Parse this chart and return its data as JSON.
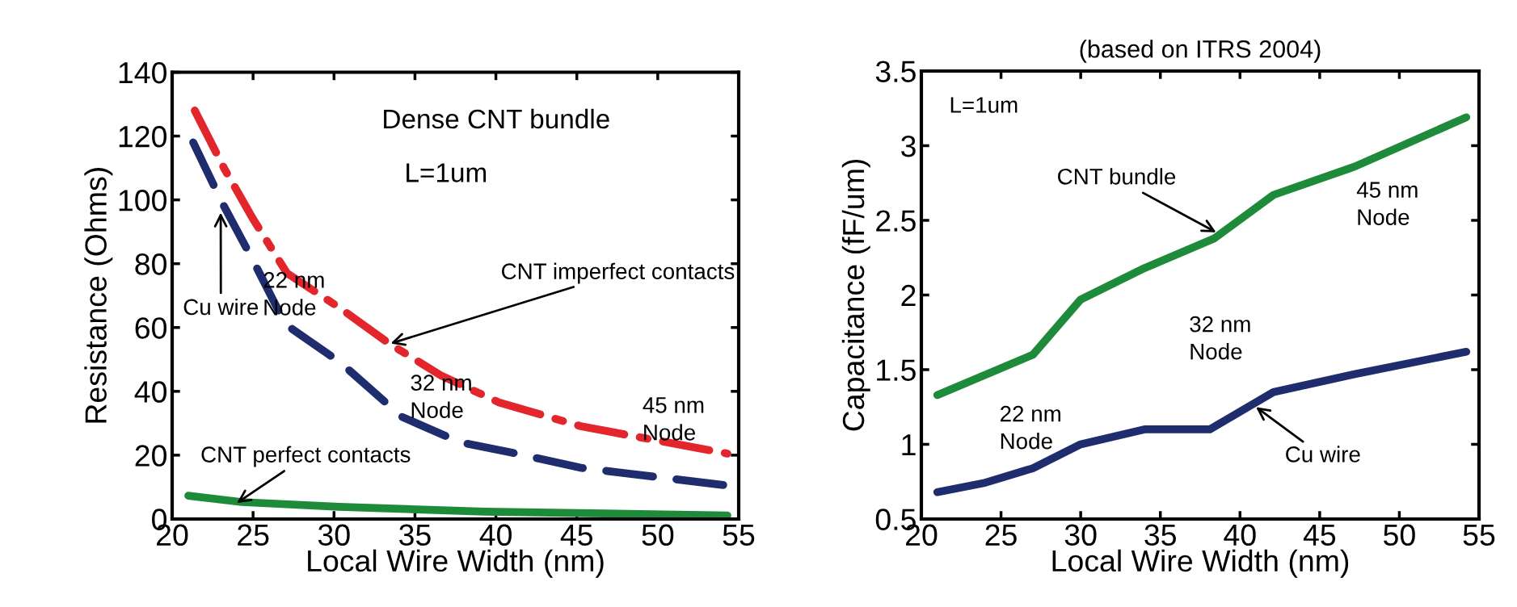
{
  "chart_data": [
    {
      "type": "line",
      "xlabel": "Local Wire Width (nm)",
      "ylabel": "Resistance (Ohms)",
      "xlim": [
        20,
        55
      ],
      "ylim": [
        0,
        140
      ],
      "xticks": [
        20,
        25,
        30,
        35,
        40,
        45,
        50,
        55
      ],
      "yticks": [
        0,
        20,
        40,
        60,
        80,
        100,
        120,
        140
      ],
      "grid": false,
      "marker": "none",
      "series": [
        {
          "color": "#e3262b",
          "line_style": "dashdot",
          "x": [
            21.4,
            23.2,
            25,
            27.1,
            30.4,
            33.4,
            36.6,
            40.2,
            45.3,
            54.3
          ],
          "values": [
            128,
            110,
            94,
            77,
            66,
            55,
            45,
            36.5,
            29,
            20.5
          ]
        },
        {
          "color": "#1f2d6e",
          "line_style": "dashed",
          "x": [
            21.3,
            23.1,
            25,
            27,
            30.4,
            34.2,
            37.8,
            40.8,
            45.3,
            54.3
          ],
          "values": [
            118,
            99,
            81,
            61,
            49,
            32,
            24,
            21,
            16,
            10.5
          ]
        },
        {
          "color": "#1e8b3a",
          "line_style": "solid",
          "x": [
            21,
            24.3,
            30.3,
            39.3,
            54.3
          ],
          "values": [
            7.3,
            5.3,
            3.8,
            2.3,
            1.1
          ]
        }
      ],
      "annotations": [
        "Dense CNT bundle",
        "L=1um",
        "22 nm\nNode",
        "32 nm\nNode",
        "45 nm\nNode",
        {
          "text": "CNT imperfect contacts",
          "x": 33.5,
          "y": 55
        },
        {
          "text": "Cu wire",
          "x": 23,
          "y": 96
        },
        {
          "text": "CNT perfect contacts",
          "x": 24,
          "y": 5
        }
      ]
    },
    {
      "type": "line",
      "title": "(based on ITRS 2004)",
      "xlabel": "Local Wire Width (nm)",
      "ylabel": "Capacitance (fF/um)",
      "xlim": [
        20,
        55
      ],
      "ylim": [
        0.5,
        3.5
      ],
      "xticks": [
        20,
        25,
        30,
        35,
        40,
        45,
        50,
        55
      ],
      "yticks": [
        0.5,
        1,
        1.5,
        2,
        2.5,
        3,
        3.5
      ],
      "grid": false,
      "marker": "none",
      "series": [
        {
          "color": "#1e8b3a",
          "line_style": "solid",
          "x": [
            21,
            27,
            30,
            34,
            38.4,
            42.1,
            47.2,
            54.2
          ],
          "values": [
            1.33,
            1.6,
            1.97,
            2.18,
            2.38,
            2.67,
            2.86,
            3.19
          ]
        },
        {
          "color": "#1f2d6e",
          "line_style": "solid",
          "x": [
            21,
            23.9,
            27,
            30,
            34,
            38.1,
            42.1,
            47.2,
            54.2
          ],
          "values": [
            0.68,
            0.74,
            0.84,
            1.0,
            1.1,
            1.1,
            1.35,
            1.47,
            1.62
          ]
        }
      ],
      "annotations": [
        "L=1um",
        {
          "text": "CNT bundle",
          "x": 38.5,
          "y": 2.42
        },
        "45 nm\nNode",
        "32 nm\nNode",
        "22 nm\nNode",
        {
          "text": "Cu wire",
          "x": 41,
          "y": 1.25
        }
      ]
    }
  ]
}
